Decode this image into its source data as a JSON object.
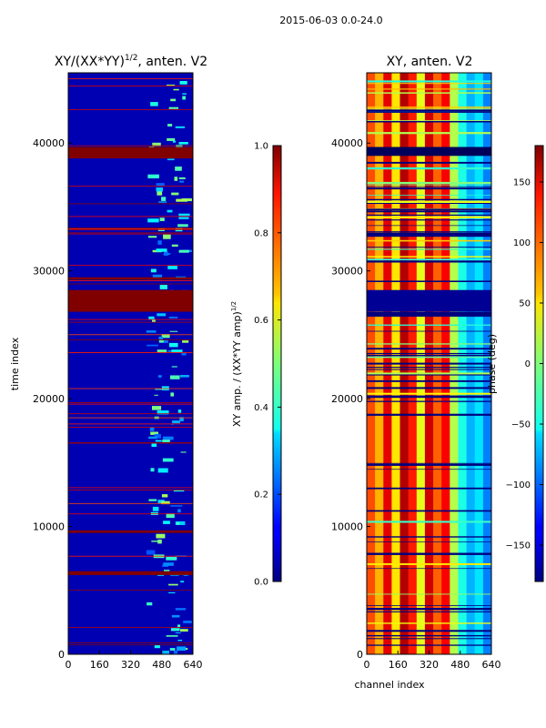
{
  "suptitle": "2015-06-03 0.0-24.0",
  "chart_data": [
    {
      "type": "heatmap",
      "title": "XY/(XX*YY)",
      "title_superscript": "1/2",
      "title_suffix": ", anten. V2",
      "xlabel": "",
      "ylabel": "time index",
      "xlim": [
        0,
        640
      ],
      "ylim": [
        0,
        45500
      ],
      "xticks": [
        "0",
        "160",
        "320",
        "480",
        "640"
      ],
      "yticks": [
        "0",
        "10000",
        "20000",
        "30000",
        "40000"
      ],
      "colorbar": {
        "label": "XY amp. / (XX*YY amp)",
        "label_superscript": "1/2",
        "range": [
          0.0,
          1.0
        ],
        "ticks": [
          "0.0",
          "0.2",
          "0.4",
          "0.6",
          "0.8",
          "1.0"
        ],
        "colormap": "jet"
      },
      "background_value": 0.05,
      "high_bands_y": [
        [
          38800,
          39700
        ],
        [
          26800,
          28500
        ],
        [
          29300,
          29500
        ],
        [
          9500,
          9700
        ],
        [
          6200,
          6500
        ]
      ],
      "bright_region_x": [
        400,
        620
      ],
      "colors": {
        "low": "#00007f",
        "high": "#7f0000"
      }
    },
    {
      "type": "heatmap",
      "title": "XY, anten. V2",
      "xlabel": "channel index",
      "ylabel": "",
      "xlim": [
        0,
        640
      ],
      "ylim": [
        0,
        45500
      ],
      "xticks": [
        "0",
        "160",
        "320",
        "480",
        "640"
      ],
      "yticks": [
        "0",
        "10000",
        "20000",
        "30000",
        "40000"
      ],
      "colorbar": {
        "label": "phase (deg)",
        "range": [
          -180,
          180
        ],
        "ticks": [
          "−150",
          "−100",
          "−50",
          "0",
          "50",
          "100",
          "150"
        ],
        "colormap": "jet"
      },
      "low_band_y": [
        26800,
        28500
      ],
      "dark_band_y": [
        39000,
        39700
      ]
    }
  ]
}
